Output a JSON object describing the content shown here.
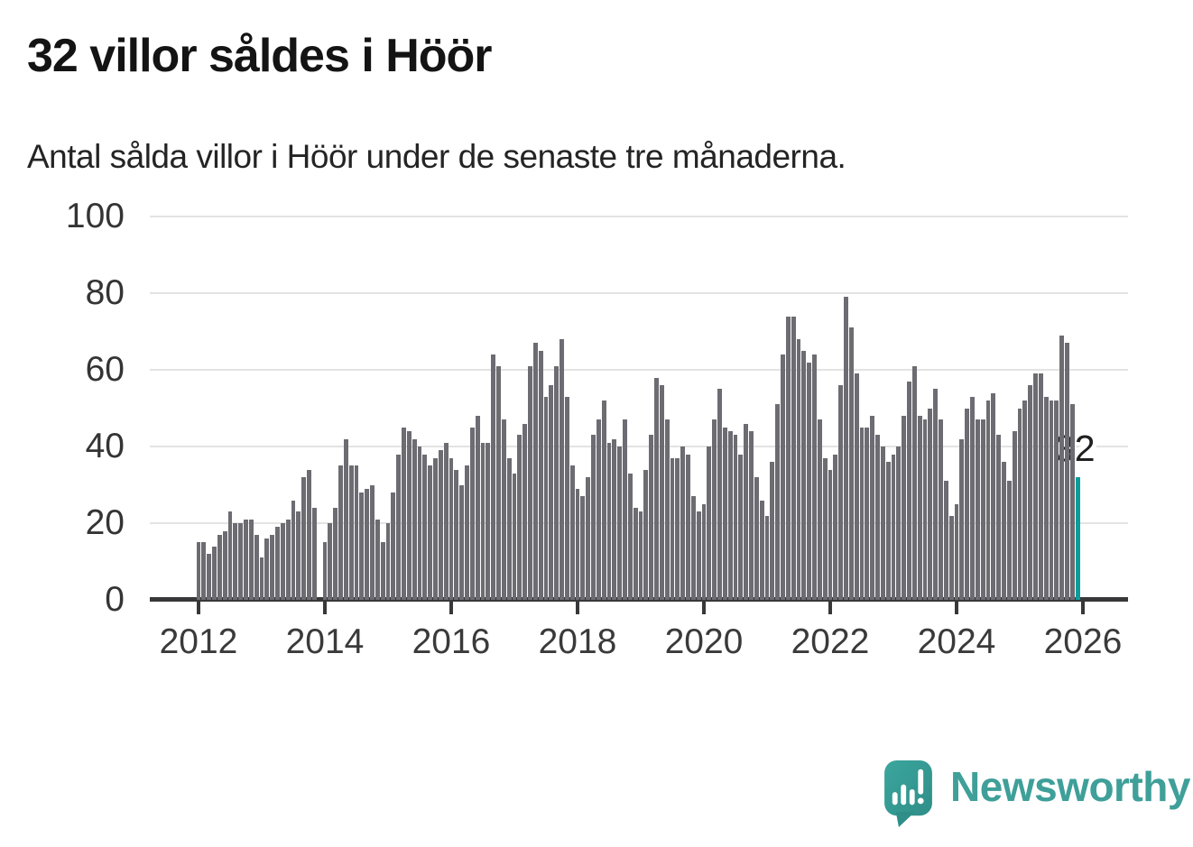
{
  "header": {
    "title": "32 villor såldes i Höör",
    "subtitle": "Antal sålda villor i Höör under de senaste tre månaderna."
  },
  "chart_data": {
    "type": "bar",
    "title": "32 villor såldes i Höör",
    "subtitle": "Antal sålda villor i Höör under de senaste tre månaderna.",
    "x_description": "monthly bars, January 2012 through December 2025",
    "x_tick_labels": [
      "2012",
      "2014",
      "2016",
      "2018",
      "2020",
      "2022",
      "2024",
      "2026"
    ],
    "yticks": [
      0,
      20,
      40,
      60,
      80,
      100
    ],
    "ylim": [
      0,
      100
    ],
    "grid": true,
    "values": [
      15,
      15,
      12,
      14,
      17,
      18,
      23,
      20,
      20,
      21,
      21,
      17,
      11,
      16,
      17,
      19,
      20,
      21,
      26,
      23,
      32,
      34,
      24,
      0,
      15,
      20,
      24,
      35,
      42,
      35,
      35,
      28,
      29,
      30,
      21,
      15,
      20,
      28,
      38,
      45,
      44,
      42,
      40,
      38,
      35,
      37,
      39,
      41,
      37,
      34,
      30,
      35,
      45,
      48,
      41,
      41,
      64,
      61,
      47,
      37,
      33,
      43,
      46,
      61,
      67,
      65,
      53,
      56,
      61,
      68,
      53,
      35,
      29,
      27,
      32,
      43,
      47,
      52,
      41,
      42,
      40,
      47,
      33,
      24,
      23,
      34,
      43,
      58,
      56,
      47,
      37,
      37,
      40,
      38,
      27,
      23,
      25,
      40,
      47,
      55,
      45,
      44,
      43,
      38,
      46,
      44,
      32,
      26,
      22,
      36,
      51,
      64,
      74,
      74,
      68,
      65,
      62,
      64,
      47,
      37,
      34,
      38,
      56,
      79,
      71,
      59,
      45,
      45,
      48,
      43,
      40,
      36,
      38,
      40,
      48,
      57,
      61,
      48,
      47,
      50,
      55,
      47,
      31,
      22,
      25,
      42,
      50,
      53,
      47,
      47,
      52,
      54,
      43,
      36,
      31,
      44,
      50,
      52,
      56,
      59,
      59,
      53,
      52,
      52,
      69,
      67,
      51,
      32
    ],
    "highlight": {
      "index": 167,
      "value": 32,
      "label": "32"
    },
    "colors": {
      "bar": "#6d6c72",
      "accent": "#0d9c9c",
      "grid": "#e3e3e3",
      "axis": "#38383a"
    }
  },
  "annotation": {
    "text": "32"
  },
  "footer": {
    "brand": "Newsworthy",
    "logo_icon": "newsworthy-speech-bubble-bar-chart-icon",
    "brand_color": "#3f9f99"
  }
}
